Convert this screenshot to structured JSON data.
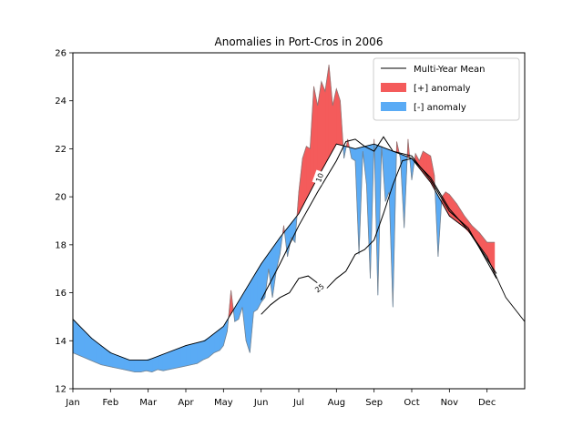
{
  "chart_data": {
    "type": "area",
    "title": "Anomalies in Port-Cros in 2006",
    "xlabel": "",
    "ylabel": "",
    "ylim": [
      12,
      26
    ],
    "yticks": [
      12,
      14,
      16,
      18,
      20,
      22,
      24,
      26
    ],
    "x_unit": "month",
    "xlim": [
      0,
      12
    ],
    "month_ticks": [
      "Jan",
      "Feb",
      "Mar",
      "Apr",
      "May",
      "Jun",
      "Jul",
      "Aug",
      "Sep",
      "Oct",
      "Nov",
      "Dec"
    ],
    "legend": {
      "placement": "top-right",
      "entries": [
        {
          "label": "Multi-Year Mean",
          "kind": "line",
          "color": "#000000"
        },
        {
          "label": "[+] anomaly",
          "kind": "patch",
          "color": "#f45b5b"
        },
        {
          "label": "[-] anomaly",
          "kind": "patch",
          "color": "#5aabf5"
        }
      ]
    },
    "colors": {
      "positive": "#f45b5b",
      "negative": "#5aabf5",
      "mean": "#000000",
      "anomaly_edge": "#777777"
    },
    "mean_line": {
      "x": [
        0,
        0.5,
        1,
        1.5,
        2,
        2.5,
        3,
        3.5,
        4,
        4.5,
        5,
        5.5,
        6,
        6.5,
        7,
        7.5,
        8,
        8.5,
        9,
        9.5,
        10,
        10.5,
        11,
        11.5,
        12
      ],
      "y": [
        14.9,
        14.1,
        13.5,
        13.2,
        13.2,
        13.5,
        13.8,
        14.0,
        14.6,
        15.9,
        17.2,
        18.3,
        19.3,
        20.8,
        22.2,
        22.0,
        22.2,
        21.9,
        21.6,
        20.6,
        19.2,
        18.6,
        17.5,
        15.8,
        14.8
      ]
    },
    "contour_lines": [
      {
        "label": "10",
        "x": [
          5.0,
          5.5,
          6.0,
          6.5,
          7.0,
          7.25,
          7.5,
          7.75,
          8.0,
          8.25,
          8.5,
          8.75,
          9.0,
          9.25,
          9.5,
          10.0,
          10.5,
          11.0,
          11.25
        ],
        "y": [
          15.7,
          17.2,
          18.8,
          20.2,
          21.5,
          22.3,
          22.4,
          22.1,
          21.9,
          22.5,
          21.9,
          21.8,
          21.7,
          21.2,
          20.8,
          19.5,
          18.6,
          17.4,
          16.8
        ]
      },
      {
        "label": "25",
        "x": [
          5.0,
          5.25,
          5.5,
          5.75,
          6.0,
          6.25,
          6.5,
          6.75,
          7.0,
          7.25,
          7.5,
          7.75,
          8.0,
          8.25,
          8.5,
          8.75,
          9.0,
          9.25,
          9.5,
          10.0,
          10.5,
          11.0,
          11.25
        ],
        "y": [
          15.1,
          15.5,
          15.8,
          16.0,
          16.6,
          16.7,
          16.4,
          16.2,
          16.6,
          16.9,
          17.6,
          17.8,
          18.2,
          19.3,
          20.5,
          21.5,
          21.6,
          21.2,
          20.7,
          19.4,
          18.7,
          17.3,
          16.6
        ]
      }
    ],
    "observed": {
      "x": [
        0,
        0.15,
        0.3,
        0.45,
        0.6,
        0.75,
        0.9,
        1.05,
        1.2,
        1.35,
        1.5,
        1.65,
        1.8,
        1.95,
        2.1,
        2.25,
        2.4,
        2.55,
        2.7,
        2.85,
        3.0,
        3.15,
        3.3,
        3.45,
        3.6,
        3.75,
        3.9,
        4.0,
        4.1,
        4.2,
        4.3,
        4.4,
        4.5,
        4.6,
        4.7,
        4.8,
        4.9,
        5.0,
        5.1,
        5.2,
        5.3,
        5.4,
        5.5,
        5.6,
        5.7,
        5.8,
        5.9,
        6.0,
        6.1,
        6.2,
        6.3,
        6.4,
        6.5,
        6.6,
        6.7,
        6.8,
        6.9,
        7.0,
        7.1,
        7.2,
        7.3,
        7.4,
        7.5,
        7.6,
        7.7,
        7.8,
        7.9,
        8.0,
        8.1,
        8.2,
        8.3,
        8.4,
        8.5,
        8.6,
        8.7,
        8.8,
        8.9,
        9.0,
        9.1,
        9.2,
        9.3,
        9.4,
        9.5,
        9.6,
        9.7,
        9.8,
        9.9,
        10.0,
        10.2,
        10.4,
        10.6,
        10.8,
        11.0,
        11.2
      ],
      "y": [
        13.5,
        13.4,
        13.3,
        13.2,
        13.1,
        13.0,
        12.95,
        12.9,
        12.85,
        12.8,
        12.75,
        12.7,
        12.7,
        12.75,
        12.7,
        12.8,
        12.75,
        12.8,
        12.85,
        12.9,
        12.95,
        13.0,
        13.05,
        13.2,
        13.3,
        13.5,
        13.6,
        13.8,
        14.4,
        16.1,
        14.8,
        14.9,
        15.4,
        14.0,
        13.5,
        15.2,
        15.3,
        15.6,
        15.8,
        17.0,
        15.8,
        16.9,
        17.6,
        18.8,
        17.5,
        18.3,
        18.1,
        20.2,
        21.6,
        22.1,
        22.0,
        24.6,
        23.8,
        24.8,
        24.4,
        25.5,
        23.8,
        24.5,
        24.0,
        21.6,
        22.4,
        21.6,
        21.5,
        17.6,
        21.9,
        20.5,
        16.6,
        22.4,
        15.9,
        22.1,
        19.8,
        20.2,
        15.4,
        22.3,
        21.6,
        18.7,
        22.4,
        20.7,
        21.8,
        21.5,
        21.9,
        21.8,
        21.7,
        20.9,
        17.5,
        20.0,
        20.2,
        20.1,
        19.7,
        19.2,
        18.8,
        18.5,
        18.1,
        18.1
      ]
    },
    "contour_label_positions": [
      {
        "label": "10",
        "x": 6.55,
        "y": 20.8,
        "rotation": -70
      },
      {
        "label": "25",
        "x": 6.55,
        "y": 16.2,
        "rotation": -38
      }
    ]
  }
}
